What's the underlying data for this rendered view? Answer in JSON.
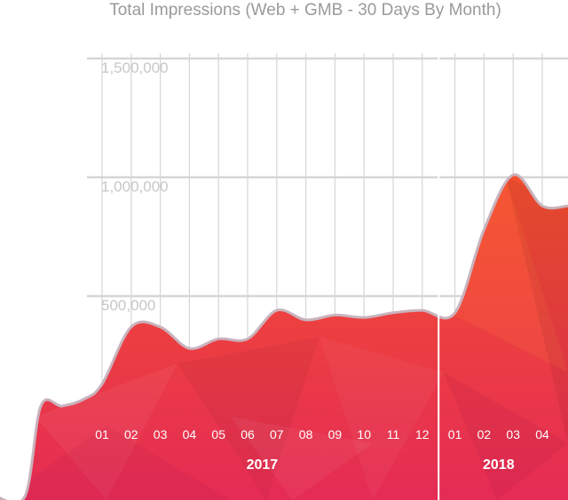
{
  "chart_data": {
    "type": "area",
    "title": "Total Impressions (Web + GMB - 30 Days By Month)",
    "xlabel": "",
    "ylabel": "",
    "ylim": [
      0,
      1500000
    ],
    "yticks": [
      {
        "value": 500000,
        "label": "500,000"
      },
      {
        "value": 1000000,
        "label": "1,000,000"
      },
      {
        "value": 1500000,
        "label": "1,500,000"
      }
    ],
    "grid": true,
    "x_ticks": [
      "01",
      "02",
      "03",
      "04",
      "05",
      "06",
      "07",
      "08",
      "09",
      "10",
      "11",
      "12",
      "01",
      "02",
      "03",
      "04"
    ],
    "year_groups": [
      {
        "label": "2017",
        "from": 0,
        "to": 11
      },
      {
        "label": "2018",
        "from": 12,
        "to": 15
      }
    ],
    "series": [
      {
        "values": [
          130000,
          370000,
          370000,
          280000,
          320000,
          320000,
          440000,
          400000,
          420000,
          410000,
          430000,
          440000,
          430000,
          780000,
          1010000,
          880000
        ]
      }
    ],
    "colors": {
      "area_top": "#f4502f",
      "area_bottom": "#e42b55",
      "outline": "#c8b3bd",
      "grid": "#d6d6d6",
      "year_divider": "#ffffff"
    }
  }
}
